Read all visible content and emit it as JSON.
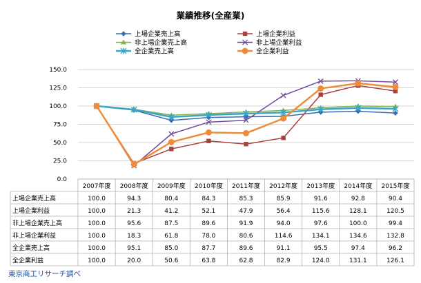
{
  "chart_data": {
    "type": "line",
    "title": "業績推移(全産業)",
    "categories": [
      "2007年度",
      "2008年度",
      "2009年度",
      "2010年度",
      "2011年度",
      "2012年度",
      "2013年度",
      "2014年度",
      "2015年度"
    ],
    "ylim": [
      0,
      150
    ],
    "yticks": [
      "0.0",
      "25.0",
      "50.0",
      "75.0",
      "100.0",
      "125.0",
      "150.0"
    ],
    "grid": true,
    "legend_position": "top",
    "series": [
      {
        "name": "上場企業売上高",
        "color": "#3a6ab0",
        "marker": "diamond",
        "width": 1.5,
        "values": [
          100.0,
          94.3,
          80.4,
          84.3,
          85.3,
          85.9,
          91.6,
          92.8,
          90.4
        ],
        "labels": [
          "100.0",
          "94.3",
          "80.4",
          "84.3",
          "85.3",
          "85.9",
          "91.6",
          "92.8",
          "90.4"
        ]
      },
      {
        "name": "上場企業利益",
        "color": "#a8403e",
        "marker": "square",
        "width": 1.5,
        "values": [
          100.0,
          21.3,
          41.2,
          52.1,
          47.9,
          56.4,
          115.6,
          128.1,
          120.5
        ],
        "labels": [
          "100.0",
          "21.3",
          "41.2",
          "52.1",
          "47.9",
          "56.4",
          "115.6",
          "128.1",
          "120.5"
        ]
      },
      {
        "name": "非上場企業売上高",
        "color": "#8ab245",
        "marker": "triangle",
        "width": 1.5,
        "values": [
          100.0,
          95.6,
          87.5,
          89.6,
          91.9,
          94.0,
          97.6,
          100.0,
          99.4
        ],
        "labels": [
          "100.0",
          "95.6",
          "87.5",
          "89.6",
          "91.9",
          "94.0",
          "97.6",
          "100.0",
          "99.4"
        ]
      },
      {
        "name": "非上場企業利益",
        "color": "#6f4a9a",
        "marker": "x",
        "width": 1.5,
        "values": [
          100.0,
          18.3,
          61.8,
          78.0,
          80.6,
          114.6,
          134.1,
          134.6,
          132.8
        ],
        "labels": [
          "100.0",
          "18.3",
          "61.8",
          "78.0",
          "80.6",
          "114.6",
          "134.1",
          "134.6",
          "132.8"
        ]
      },
      {
        "name": "全企業売上高",
        "color": "#3aa6c6",
        "marker": "star",
        "width": 2.5,
        "values": [
          100.0,
          95.1,
          85.0,
          87.7,
          89.6,
          91.1,
          95.5,
          97.4,
          96.2
        ],
        "labels": [
          "100.0",
          "95.1",
          "85.0",
          "87.7",
          "89.6",
          "91.1",
          "95.5",
          "97.4",
          "96.2"
        ]
      },
      {
        "name": "全企業利益",
        "color": "#ee8c3a",
        "marker": "circle",
        "width": 2.5,
        "values": [
          100.0,
          20.0,
          50.6,
          63.8,
          62.8,
          82.9,
          124.0,
          131.1,
          126.1
        ],
        "labels": [
          "100.0",
          "20.0",
          "50.6",
          "63.8",
          "62.8",
          "82.9",
          "124.0",
          "131.1",
          "126.1"
        ]
      }
    ]
  },
  "source": "東京商工リサーチ調べ"
}
